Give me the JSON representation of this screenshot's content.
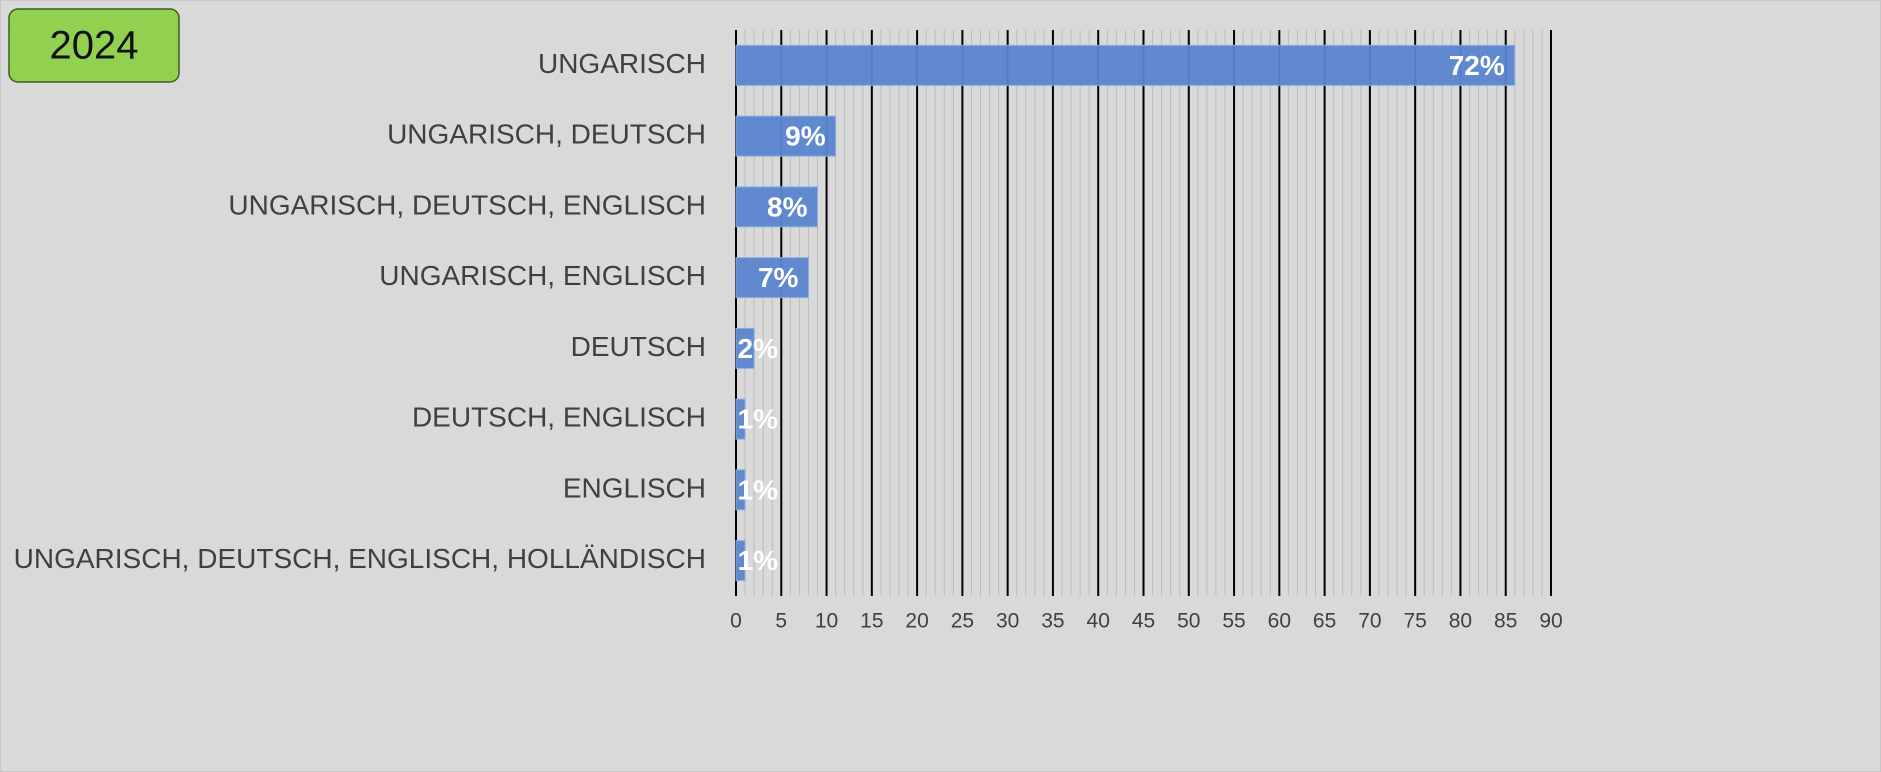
{
  "badge": "2024",
  "chart_data": {
    "type": "barh",
    "categories": [
      "UNGARISCH",
      "UNGARISCH, DEUTSCH",
      "UNGARISCH, DEUTSCH, ENGLISCH",
      "UNGARISCH, ENGLISCH",
      "DEUTSCH",
      "DEUTSCH, ENGLISCH",
      "ENGLISCH",
      "UNGARISCH, DEUTSCH, ENGLISCH, HOLLÄNDISCH"
    ],
    "values": [
      86,
      11,
      9,
      8,
      2,
      1,
      1,
      1
    ],
    "share_labels": [
      "72%",
      "9%",
      "8%",
      "7%",
      "2%",
      "1%",
      "1%",
      "1%"
    ],
    "color": "#5b85cf",
    "xlim": [
      0,
      90
    ],
    "xticks": [
      0,
      5,
      10,
      15,
      20,
      25,
      30,
      35,
      40,
      45,
      50,
      55,
      60,
      65,
      70,
      75,
      80,
      85,
      90
    ],
    "grid": true
  }
}
